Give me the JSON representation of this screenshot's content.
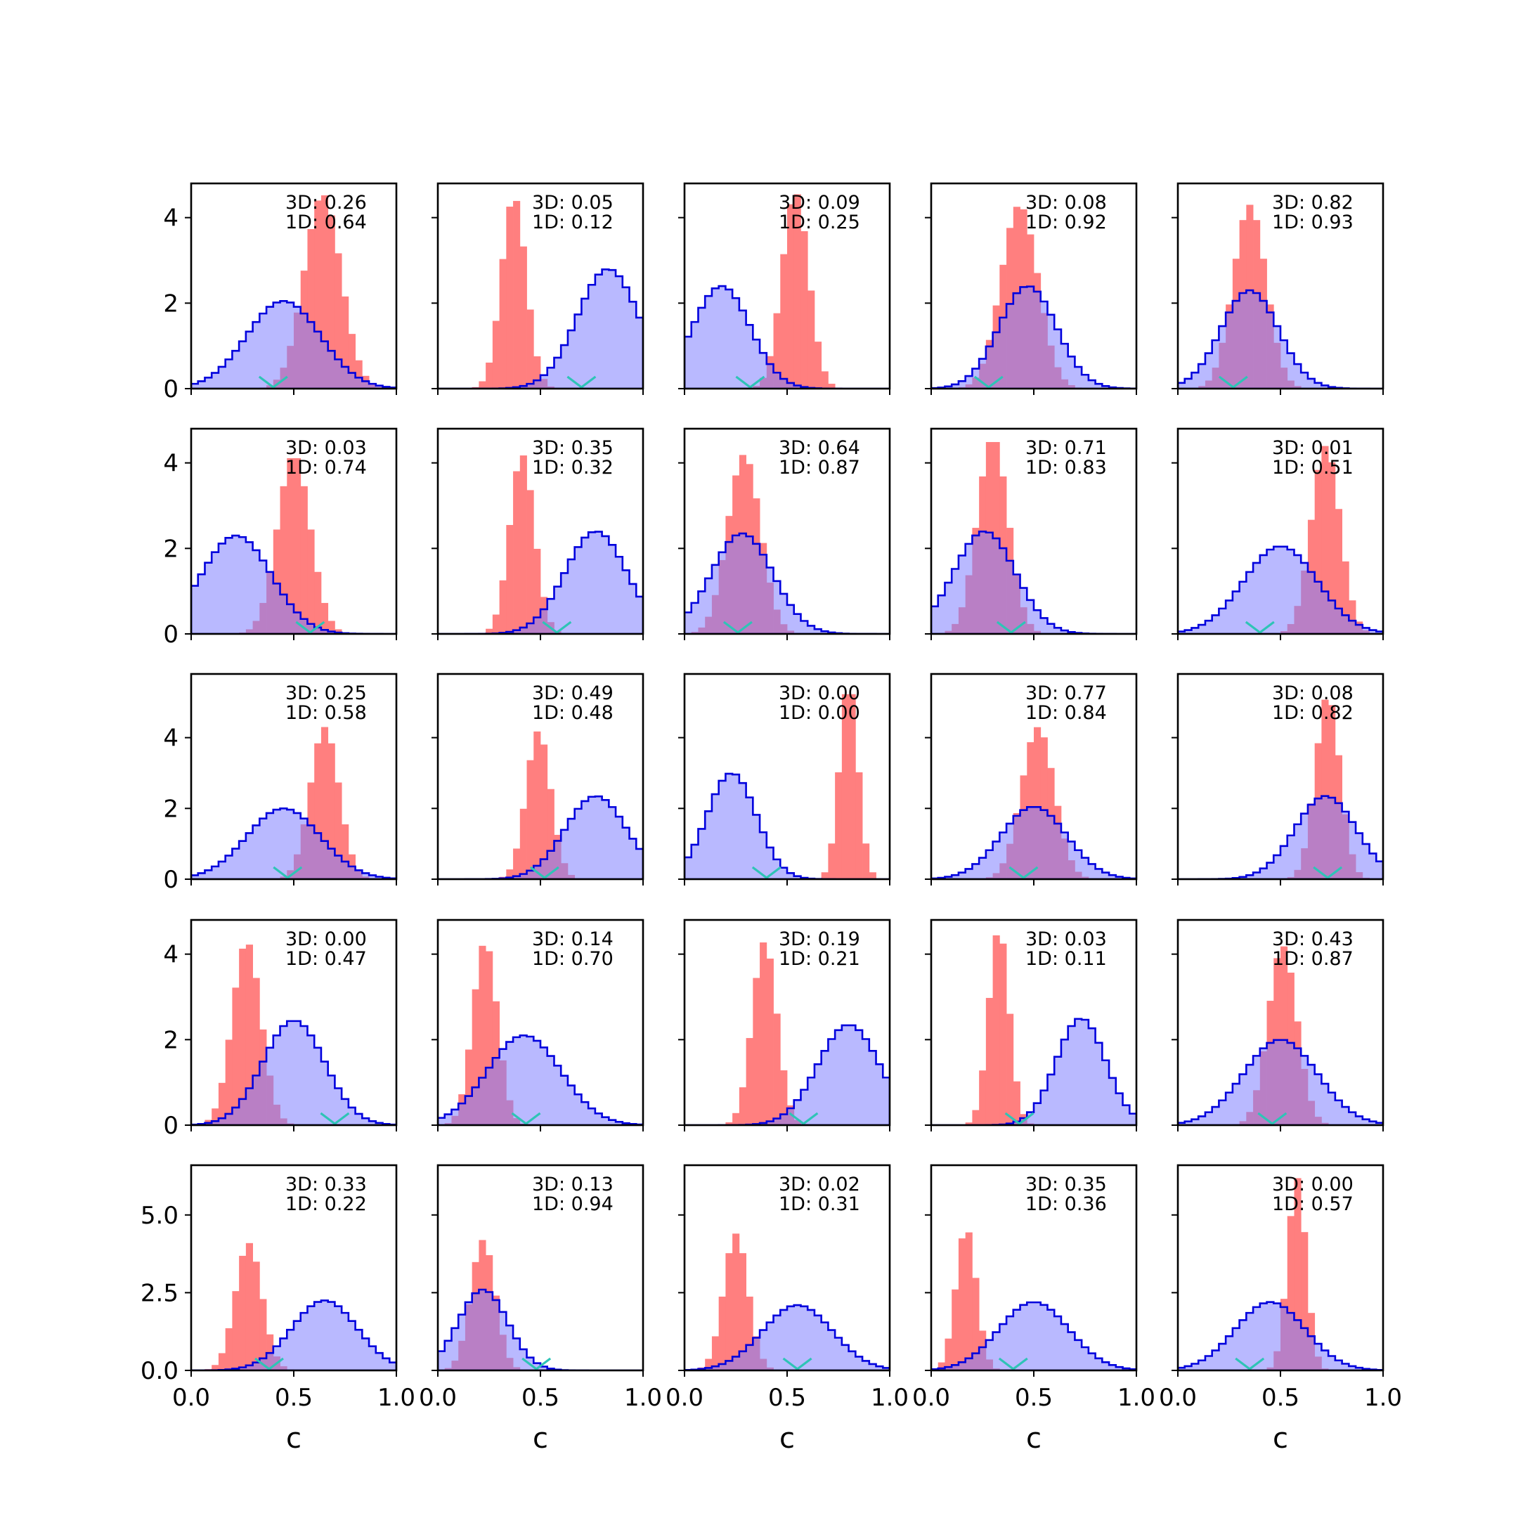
{
  "colors": {
    "blue_fill": "#8080ff",
    "blue_edge": "#0000dd",
    "red_fill": "#ff7f7f",
    "marker": "#2ec4b6",
    "axis": "#000000"
  },
  "chart_data": {
    "type": "histogram-grid",
    "rows": 5,
    "cols": 5,
    "xlabel": "c",
    "xlim": [
      0,
      1
    ],
    "xticks": [
      "0.0",
      "0.5",
      "1.0"
    ],
    "row_ylims": [
      [
        0,
        4.8
      ],
      [
        0,
        4.8
      ],
      [
        0,
        5.8
      ],
      [
        0,
        4.8
      ],
      [
        0,
        6.6
      ]
    ],
    "row_yticks": [
      [
        "0",
        "2",
        "4"
      ],
      [
        "0",
        "2",
        "4"
      ],
      [
        "0",
        "2",
        "4"
      ],
      [
        "0",
        "2",
        "4"
      ],
      [
        "0.0",
        "2.5",
        "5.0"
      ]
    ],
    "panels": [
      {
        "label3d": "3D: 0.26",
        "label1d": "1D: 0.64",
        "blue": {
          "mu": 0.45,
          "sd": 0.18,
          "peak": 2.05
        },
        "red": {
          "mu": 0.64,
          "sd": 0.09,
          "peak": 4.55
        },
        "marker": 0.4
      },
      {
        "label3d": "3D: 0.05",
        "label1d": "1D: 0.12",
        "blue": {
          "mu": 0.83,
          "sd": 0.15,
          "peak": 2.8
        },
        "red": {
          "mu": 0.37,
          "sd": 0.06,
          "peak": 4.5
        },
        "marker": 0.7
      },
      {
        "label3d": "3D: 0.09",
        "label1d": "1D: 0.25",
        "blue": {
          "mu": 0.18,
          "sd": 0.14,
          "peak": 2.4
        },
        "red": {
          "mu": 0.54,
          "sd": 0.065,
          "peak": 4.6
        },
        "marker": 0.32
      },
      {
        "label3d": "3D: 0.08",
        "label1d": "1D: 0.92",
        "blue": {
          "mu": 0.47,
          "sd": 0.14,
          "peak": 2.4
        },
        "red": {
          "mu": 0.43,
          "sd": 0.09,
          "peak": 4.3
        },
        "marker": 0.28
      },
      {
        "label3d": "3D: 0.82",
        "label1d": "1D: 0.93",
        "blue": {
          "mu": 0.35,
          "sd": 0.14,
          "peak": 2.3
        },
        "red": {
          "mu": 0.35,
          "sd": 0.08,
          "peak": 4.3
        },
        "marker": 0.27
      },
      {
        "label3d": "3D: 0.03",
        "label1d": "1D: 0.74",
        "blue": {
          "mu": 0.22,
          "sd": 0.17,
          "peak": 2.3
        },
        "red": {
          "mu": 0.5,
          "sd": 0.08,
          "peak": 4.2
        },
        "marker": 0.58
      },
      {
        "label3d": "3D: 0.35",
        "label1d": "1D: 0.32",
        "blue": {
          "mu": 0.77,
          "sd": 0.15,
          "peak": 2.4
        },
        "red": {
          "mu": 0.41,
          "sd": 0.06,
          "peak": 4.2
        },
        "marker": 0.58
      },
      {
        "label3d": "3D: 0.64",
        "label1d": "1D: 0.87",
        "blue": {
          "mu": 0.28,
          "sd": 0.15,
          "peak": 2.35
        },
        "red": {
          "mu": 0.29,
          "sd": 0.08,
          "peak": 4.2
        },
        "marker": 0.26
      },
      {
        "label3d": "3D: 0.71",
        "label1d": "1D: 0.83",
        "blue": {
          "mu": 0.26,
          "sd": 0.15,
          "peak": 2.4
        },
        "red": {
          "mu": 0.3,
          "sd": 0.075,
          "peak": 4.6
        },
        "marker": 0.39
      },
      {
        "label3d": "3D: 0.01",
        "label1d": "1D: 0.51",
        "blue": {
          "mu": 0.5,
          "sd": 0.18,
          "peak": 2.05
        },
        "red": {
          "mu": 0.72,
          "sd": 0.07,
          "peak": 4.4
        },
        "marker": 0.4
      },
      {
        "label3d": "3D: 0.25",
        "label1d": "1D: 0.58",
        "blue": {
          "mu": 0.45,
          "sd": 0.18,
          "peak": 2.0
        },
        "red": {
          "mu": 0.65,
          "sd": 0.07,
          "peak": 4.3
        },
        "marker": 0.47
      },
      {
        "label3d": "3D: 0.49",
        "label1d": "1D: 0.48",
        "blue": {
          "mu": 0.77,
          "sd": 0.15,
          "peak": 2.35
        },
        "red": {
          "mu": 0.49,
          "sd": 0.06,
          "peak": 4.2
        },
        "marker": 0.52
      },
      {
        "label3d": "3D: 0.00",
        "label1d": "1D: 0.00",
        "blue": {
          "mu": 0.23,
          "sd": 0.12,
          "peak": 3.0
        },
        "red": {
          "mu": 0.8,
          "sd": 0.045,
          "peak": 5.6
        },
        "marker": 0.4
      },
      {
        "label3d": "3D: 0.77",
        "label1d": "1D: 0.84",
        "blue": {
          "mu": 0.5,
          "sd": 0.16,
          "peak": 2.05
        },
        "red": {
          "mu": 0.52,
          "sd": 0.08,
          "peak": 4.3
        },
        "marker": 0.45
      },
      {
        "label3d": "3D: 0.08",
        "label1d": "1D: 0.82",
        "blue": {
          "mu": 0.72,
          "sd": 0.15,
          "peak": 2.35
        },
        "red": {
          "mu": 0.73,
          "sd": 0.06,
          "peak": 5.2
        },
        "marker": 0.73
      },
      {
        "label3d": "3D: 0.00",
        "label1d": "1D: 0.47",
        "blue": {
          "mu": 0.5,
          "sd": 0.15,
          "peak": 2.45
        },
        "red": {
          "mu": 0.27,
          "sd": 0.07,
          "peak": 4.3
        },
        "marker": 0.7
      },
      {
        "label3d": "3D: 0.14",
        "label1d": "1D: 0.70",
        "blue": {
          "mu": 0.42,
          "sd": 0.18,
          "peak": 2.1
        },
        "red": {
          "mu": 0.23,
          "sd": 0.06,
          "peak": 4.3
        },
        "marker": 0.43
      },
      {
        "label3d": "3D: 0.19",
        "label1d": "1D: 0.21",
        "blue": {
          "mu": 0.8,
          "sd": 0.15,
          "peak": 2.35
        },
        "red": {
          "mu": 0.39,
          "sd": 0.06,
          "peak": 4.3
        },
        "marker": 0.58
      },
      {
        "label3d": "3D: 0.03",
        "label1d": "1D: 0.11",
        "blue": {
          "mu": 0.73,
          "sd": 0.12,
          "peak": 2.5
        },
        "red": {
          "mu": 0.33,
          "sd": 0.05,
          "peak": 4.6
        },
        "marker": 0.43
      },
      {
        "label3d": "3D: 0.43",
        "label1d": "1D: 0.87",
        "blue": {
          "mu": 0.5,
          "sd": 0.18,
          "peak": 2.0
        },
        "red": {
          "mu": 0.51,
          "sd": 0.07,
          "peak": 4.2
        },
        "marker": 0.46
      },
      {
        "label3d": "3D: 0.33",
        "label1d": "1D: 0.22",
        "blue": {
          "mu": 0.65,
          "sd": 0.16,
          "peak": 2.25
        },
        "red": {
          "mu": 0.28,
          "sd": 0.065,
          "peak": 4.1
        },
        "marker": 0.38
      },
      {
        "label3d": "3D: 0.13",
        "label1d": "1D: 0.94",
        "blue": {
          "mu": 0.22,
          "sd": 0.12,
          "peak": 2.6
        },
        "red": {
          "mu": 0.22,
          "sd": 0.06,
          "peak": 4.2
        },
        "marker": 0.48
      },
      {
        "label3d": "3D: 0.02",
        "label1d": "1D: 0.31",
        "blue": {
          "mu": 0.55,
          "sd": 0.17,
          "peak": 2.1
        },
        "red": {
          "mu": 0.25,
          "sd": 0.06,
          "peak": 4.4
        },
        "marker": 0.55
      },
      {
        "label3d": "3D: 0.35",
        "label1d": "1D: 0.36",
        "blue": {
          "mu": 0.5,
          "sd": 0.17,
          "peak": 2.2
        },
        "red": {
          "mu": 0.17,
          "sd": 0.05,
          "peak": 4.6
        },
        "marker": 0.4
      },
      {
        "label3d": "3D: 0.00",
        "label1d": "1D: 0.57",
        "blue": {
          "mu": 0.45,
          "sd": 0.17,
          "peak": 2.2
        },
        "red": {
          "mu": 0.58,
          "sd": 0.045,
          "peak": 6.2
        },
        "marker": 0.35
      }
    ]
  }
}
